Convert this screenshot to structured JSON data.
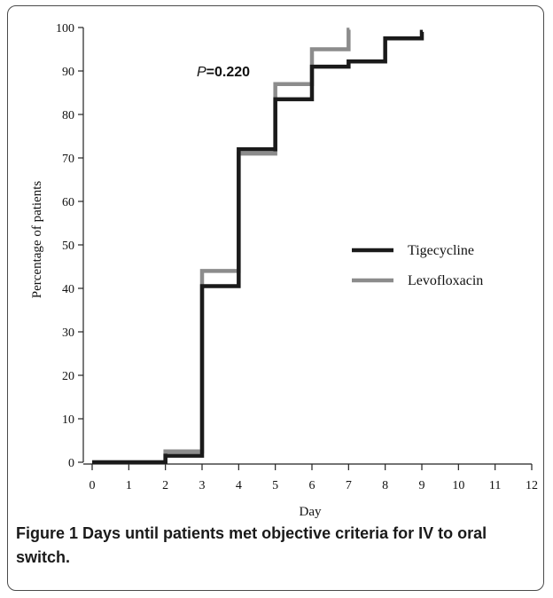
{
  "chart_data": {
    "type": "line",
    "step": true,
    "xlabel": "Day",
    "ylabel": "Percentage of patients",
    "xlim": [
      0,
      12
    ],
    "ylim": [
      0,
      100
    ],
    "xticks": [
      0,
      1,
      2,
      3,
      4,
      5,
      6,
      7,
      8,
      9,
      10,
      11,
      12
    ],
    "yticks": [
      0,
      10,
      20,
      30,
      40,
      50,
      60,
      70,
      80,
      90,
      100
    ],
    "grid": false,
    "legend_position": "right",
    "annotation": {
      "prefix": "P",
      "value": "=0.220"
    },
    "series": [
      {
        "name": "Tigecycline",
        "color": "#1a1a1a",
        "x": [
          0,
          2,
          3,
          4,
          5,
          6,
          7,
          8,
          9
        ],
        "y": [
          0,
          1.5,
          40.5,
          72,
          83.5,
          91,
          92.2,
          97.5,
          99
        ]
      },
      {
        "name": "Levofloxacin",
        "color": "#8c8c8c",
        "x": [
          0,
          2,
          3,
          4,
          5,
          6,
          7
        ],
        "y": [
          0,
          2.5,
          44,
          71,
          87,
          95,
          99.5
        ]
      }
    ]
  },
  "caption": {
    "label": "Figure 1",
    "text": "Days until patients met objective criteria for IV to oral switch."
  }
}
